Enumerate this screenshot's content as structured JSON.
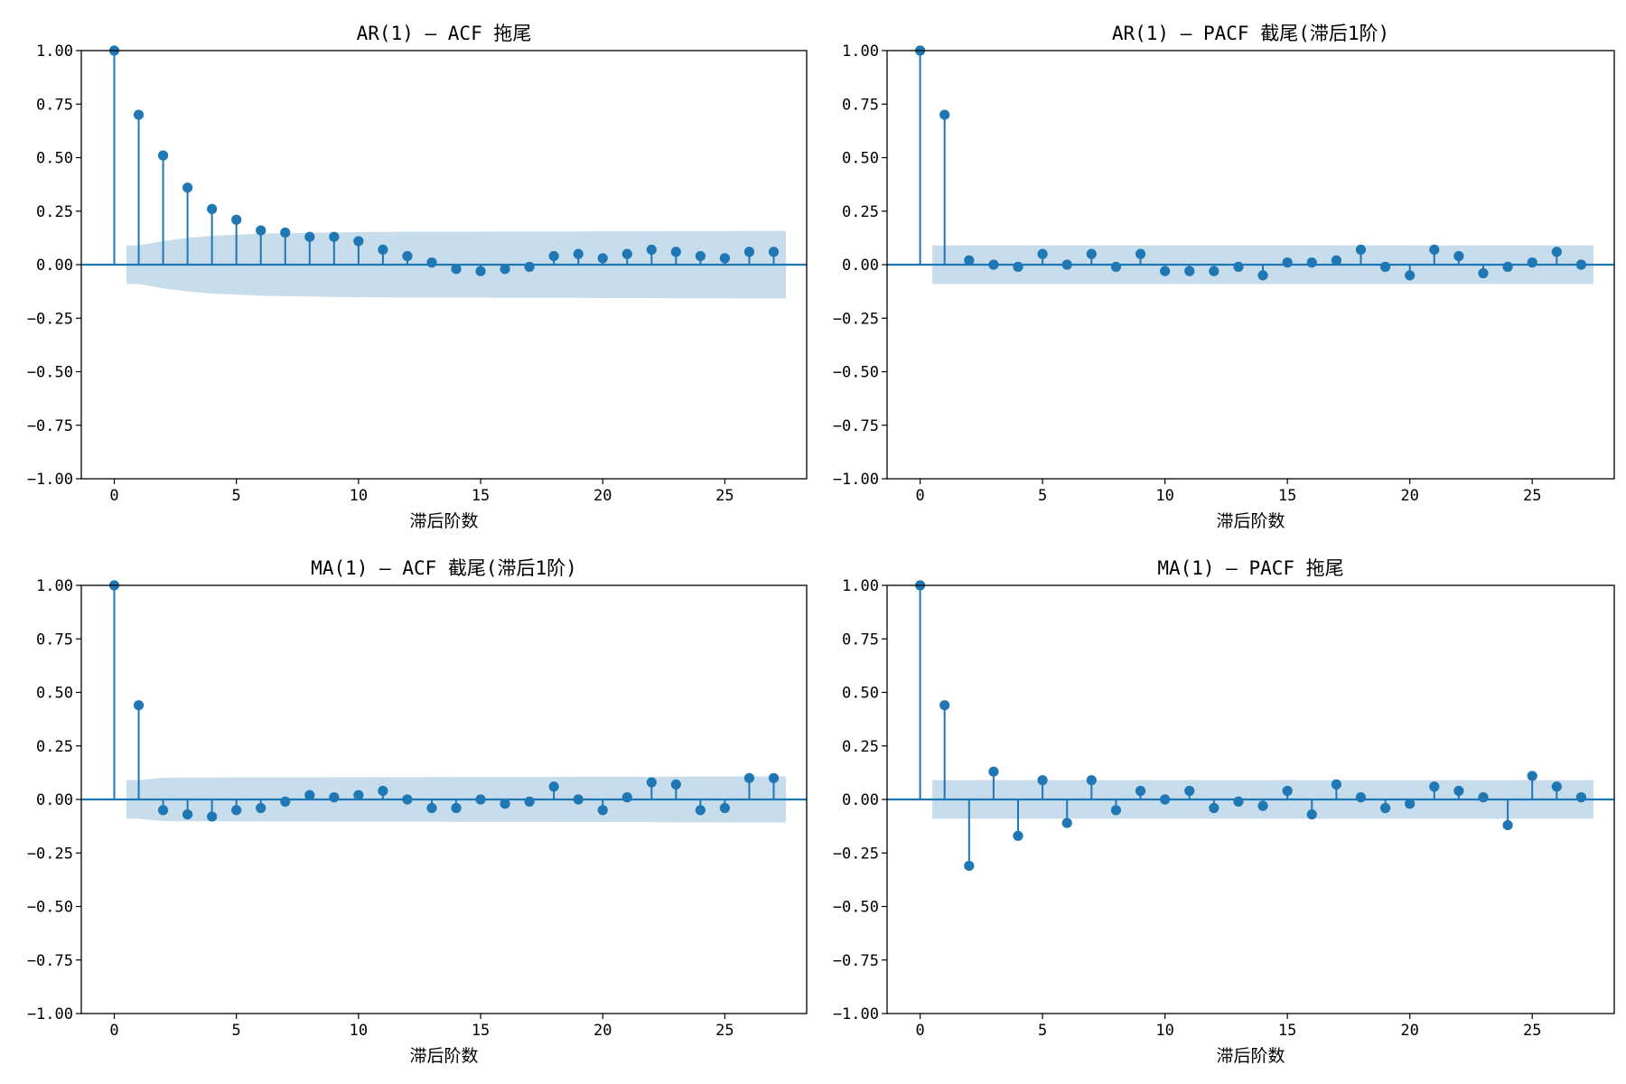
{
  "chart_data": [
    {
      "type": "scatter",
      "title": "AR(1) — ACF 拖尾",
      "xlabel": "滞后阶数",
      "ylabel": "",
      "xlim": [
        -1.35,
        28.35
      ],
      "ylim": [
        -1,
        1
      ],
      "xticks": [
        0,
        5,
        10,
        15,
        20,
        25
      ],
      "yticks": [
        -1.0,
        -0.75,
        -0.5,
        -0.25,
        0.0,
        0.25,
        0.5,
        0.75,
        1.0
      ],
      "ytick_labels": [
        "−1.00",
        "−0.75",
        "−0.50",
        "−0.25",
        "0.00",
        "0.25",
        "0.50",
        "0.75",
        "1.00"
      ],
      "color": "#1f77b4",
      "x": [
        0,
        1,
        2,
        3,
        4,
        5,
        6,
        7,
        8,
        9,
        10,
        11,
        12,
        13,
        14,
        15,
        16,
        17,
        18,
        19,
        20,
        21,
        22,
        23,
        24,
        25,
        26,
        27
      ],
      "values": [
        1.0,
        0.7,
        0.51,
        0.36,
        0.26,
        0.21,
        0.16,
        0.15,
        0.13,
        0.13,
        0.11,
        0.07,
        0.04,
        0.01,
        -0.02,
        -0.03,
        -0.02,
        -0.01,
        0.04,
        0.05,
        0.03,
        0.05,
        0.07,
        0.06,
        0.04,
        0.03,
        0.06,
        0.06
      ],
      "confidence_band": {
        "x": [
          0.5,
          1,
          2,
          3,
          4,
          5,
          6,
          7,
          8,
          9,
          10,
          11,
          12,
          13,
          14,
          15,
          16,
          17,
          18,
          19,
          20,
          21,
          22,
          23,
          24,
          25,
          26,
          27,
          27.5
        ],
        "upper": [
          0.09,
          0.09,
          0.11,
          0.125,
          0.135,
          0.14,
          0.145,
          0.147,
          0.149,
          0.151,
          0.152,
          0.153,
          0.154,
          0.154,
          0.154,
          0.154,
          0.155,
          0.155,
          0.155,
          0.155,
          0.156,
          0.156,
          0.156,
          0.157,
          0.157,
          0.157,
          0.158,
          0.158,
          0.158
        ]
      }
    },
    {
      "type": "scatter",
      "title": "AR(1) — PACF 截尾(滞后1阶)",
      "xlabel": "滞后阶数",
      "ylabel": "",
      "xlim": [
        -1.35,
        28.35
      ],
      "ylim": [
        -1,
        1
      ],
      "xticks": [
        0,
        5,
        10,
        15,
        20,
        25
      ],
      "yticks": [
        -1.0,
        -0.75,
        -0.5,
        -0.25,
        0.0,
        0.25,
        0.5,
        0.75,
        1.0
      ],
      "ytick_labels": [
        "−1.00",
        "−0.75",
        "−0.50",
        "−0.25",
        "0.00",
        "0.25",
        "0.50",
        "0.75",
        "1.00"
      ],
      "color": "#1f77b4",
      "x": [
        0,
        1,
        2,
        3,
        4,
        5,
        6,
        7,
        8,
        9,
        10,
        11,
        12,
        13,
        14,
        15,
        16,
        17,
        18,
        19,
        20,
        21,
        22,
        23,
        24,
        25,
        26,
        27
      ],
      "values": [
        1.0,
        0.7,
        0.02,
        0.0,
        -0.01,
        0.05,
        0.0,
        0.05,
        -0.01,
        0.05,
        -0.03,
        -0.03,
        -0.03,
        -0.01,
        -0.05,
        0.01,
        0.01,
        0.02,
        0.07,
        -0.01,
        -0.05,
        0.07,
        0.04,
        -0.04,
        -0.01,
        0.01,
        0.06,
        0.0
      ],
      "confidence_band": {
        "x": [
          0.5,
          27.5
        ],
        "upper": [
          0.09,
          0.09
        ]
      }
    },
    {
      "type": "scatter",
      "title": "MA(1) — ACF 截尾(滞后1阶)",
      "xlabel": "滞后阶数",
      "ylabel": "",
      "xlim": [
        -1.35,
        28.35
      ],
      "ylim": [
        -1,
        1
      ],
      "xticks": [
        0,
        5,
        10,
        15,
        20,
        25
      ],
      "yticks": [
        -1.0,
        -0.75,
        -0.5,
        -0.25,
        0.0,
        0.25,
        0.5,
        0.75,
        1.0
      ],
      "ytick_labels": [
        "−1.00",
        "−0.75",
        "−0.50",
        "−0.25",
        "0.00",
        "0.25",
        "0.50",
        "0.75",
        "1.00"
      ],
      "color": "#1f77b4",
      "x": [
        0,
        1,
        2,
        3,
        4,
        5,
        6,
        7,
        8,
        9,
        10,
        11,
        12,
        13,
        14,
        15,
        16,
        17,
        18,
        19,
        20,
        21,
        22,
        23,
        24,
        25,
        26,
        27
      ],
      "values": [
        1.0,
        0.44,
        -0.05,
        -0.07,
        -0.08,
        -0.05,
        -0.04,
        -0.01,
        0.02,
        0.01,
        0.02,
        0.04,
        0.0,
        -0.04,
        -0.04,
        0.0,
        -0.02,
        -0.01,
        0.06,
        0.0,
        -0.05,
        0.01,
        0.08,
        0.07,
        -0.05,
        -0.04,
        0.1,
        0.1
      ],
      "confidence_band": {
        "x": [
          0.5,
          1,
          2,
          3,
          4,
          5,
          6,
          7,
          8,
          9,
          10,
          11,
          12,
          13,
          14,
          15,
          16,
          17,
          18,
          19,
          20,
          21,
          22,
          23,
          24,
          25,
          26,
          27,
          27.5
        ],
        "upper": [
          0.09,
          0.09,
          0.101,
          0.102,
          0.102,
          0.103,
          0.103,
          0.103,
          0.103,
          0.104,
          0.104,
          0.104,
          0.104,
          0.104,
          0.105,
          0.105,
          0.105,
          0.105,
          0.105,
          0.106,
          0.106,
          0.106,
          0.106,
          0.107,
          0.107,
          0.107,
          0.108,
          0.108,
          0.108
        ]
      }
    },
    {
      "type": "scatter",
      "title": "MA(1) — PACF 拖尾",
      "xlabel": "滞后阶数",
      "ylabel": "",
      "xlim": [
        -1.35,
        28.35
      ],
      "ylim": [
        -1,
        1
      ],
      "xticks": [
        0,
        5,
        10,
        15,
        20,
        25
      ],
      "yticks": [
        -1.0,
        -0.75,
        -0.5,
        -0.25,
        0.0,
        0.25,
        0.5,
        0.75,
        1.0
      ],
      "ytick_labels": [
        "−1.00",
        "−0.75",
        "−0.50",
        "−0.25",
        "0.00",
        "0.25",
        "0.50",
        "0.75",
        "1.00"
      ],
      "color": "#1f77b4",
      "x": [
        0,
        1,
        2,
        3,
        4,
        5,
        6,
        7,
        8,
        9,
        10,
        11,
        12,
        13,
        14,
        15,
        16,
        17,
        18,
        19,
        20,
        21,
        22,
        23,
        24,
        25,
        26,
        27
      ],
      "values": [
        1.0,
        0.44,
        -0.31,
        0.13,
        -0.17,
        0.09,
        -0.11,
        0.09,
        -0.05,
        0.04,
        0.0,
        0.04,
        -0.04,
        -0.01,
        -0.03,
        0.04,
        -0.07,
        0.07,
        0.01,
        -0.04,
        -0.02,
        0.06,
        0.04,
        0.01,
        -0.12,
        0.11,
        0.06,
        0.01
      ],
      "confidence_band": {
        "x": [
          0.5,
          27.5
        ],
        "upper": [
          0.09,
          0.09
        ]
      }
    }
  ]
}
